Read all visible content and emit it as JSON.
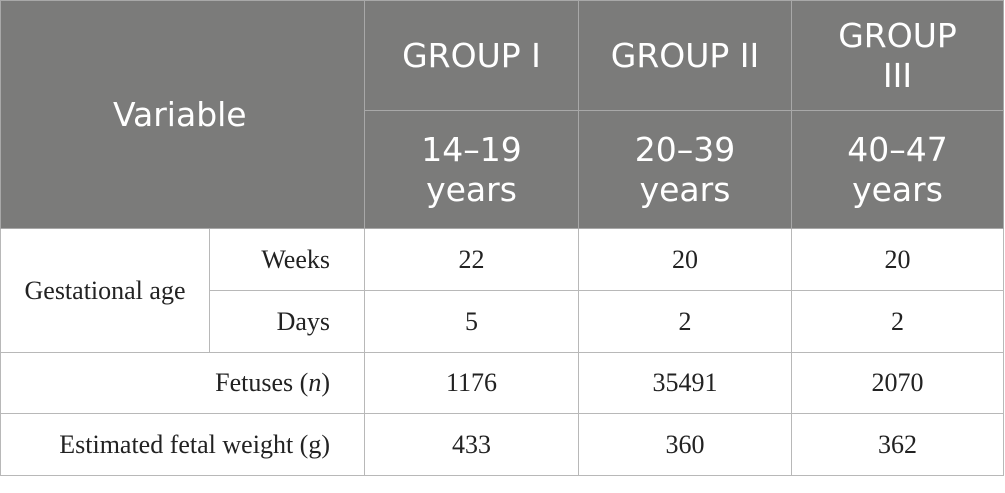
{
  "table": {
    "header": {
      "variable": "Variable",
      "groups": [
        {
          "name": "GROUP I",
          "range": "14–19 years"
        },
        {
          "name": "GROUP II",
          "range": "20–39 years"
        },
        {
          "name": "GROUP III",
          "range": "40–47 years"
        }
      ]
    },
    "gestational_age": {
      "label": "Gestational age",
      "weeks_label": "Weeks",
      "days_label": "Days",
      "weeks": [
        "22",
        "20",
        "20"
      ],
      "days": [
        "5",
        "2",
        "2"
      ]
    },
    "fetuses": {
      "label_prefix": "Fetuses (",
      "label_var": "n",
      "label_suffix": ")",
      "values": [
        "1176",
        "35491",
        "2070"
      ]
    },
    "fetal_weight": {
      "label": "Estimated fetal weight (g)",
      "values": [
        "433",
        "360",
        "362"
      ]
    }
  }
}
